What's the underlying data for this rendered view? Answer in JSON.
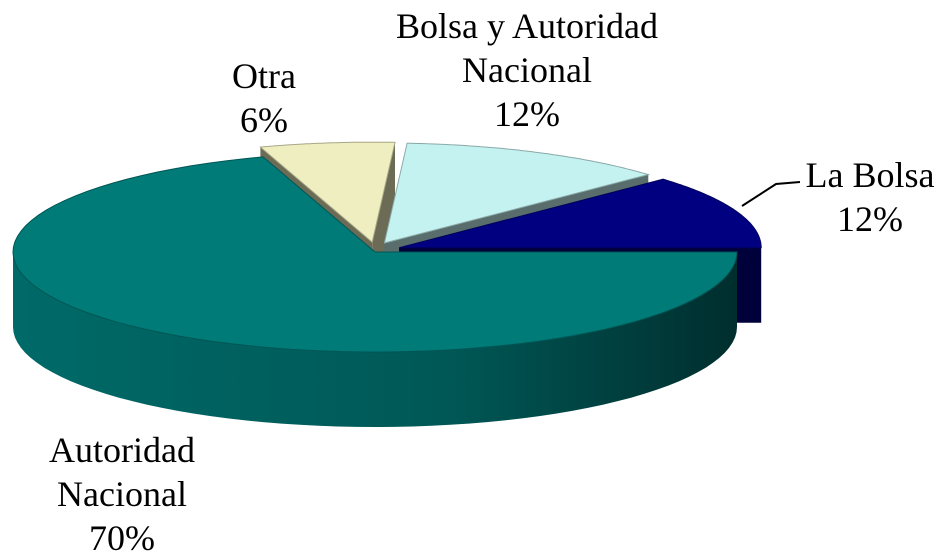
{
  "chart_data": {
    "type": "pie3d",
    "categories": [
      "Autoridad Nacional",
      "Otra",
      "Bolsa y Autoridad Nacional",
      "La Bolsa"
    ],
    "values": [
      70,
      6,
      12,
      12
    ],
    "value_labels": [
      "70%",
      "6%",
      "12%",
      "12%"
    ],
    "colors": [
      "#007b78",
      "#eeeec0",
      "#c4f2f0",
      "#000080"
    ]
  }
}
